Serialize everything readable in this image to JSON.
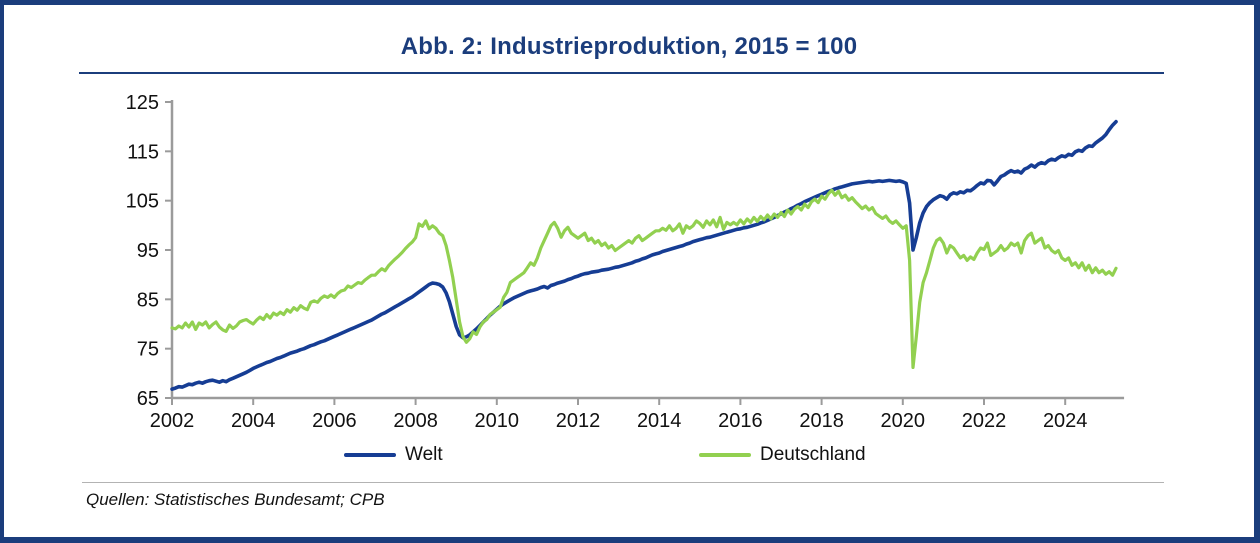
{
  "title": "Abb. 2: Industrieproduktion, 2015 = 100",
  "source": "Quellen: Statistisches Bundesamt; CPB",
  "colors": {
    "frame_navy": "#1b3d7c",
    "axis_gray": "#9b9b9b",
    "label_black": "#111111",
    "welt_blue": "#163d94",
    "deutschland_green": "#92d050"
  },
  "chart_data": {
    "type": "line",
    "title": "Abb. 2: Industrieproduktion, 2015 = 100",
    "xlabel": "",
    "ylabel": "",
    "xlim": [
      2002,
      2025.45
    ],
    "ylim": [
      65,
      125
    ],
    "x_ticks": [
      2002,
      2004,
      2006,
      2008,
      2010,
      2012,
      2014,
      2016,
      2018,
      2020,
      2022,
      2024
    ],
    "y_ticks": [
      65,
      75,
      85,
      95,
      105,
      115,
      125
    ],
    "grid": false,
    "legend_position": "bottom",
    "x_start_year": 2002,
    "x_step_months": 1,
    "series": [
      {
        "name": "Welt",
        "color": "#163d94",
        "values": [
          66.8,
          67.0,
          67.3,
          67.2,
          67.5,
          67.8,
          67.7,
          68.0,
          68.2,
          68.0,
          68.3,
          68.5,
          68.6,
          68.4,
          68.2,
          68.5,
          68.3,
          68.7,
          69.0,
          69.3,
          69.6,
          69.9,
          70.2,
          70.6,
          71.0,
          71.3,
          71.6,
          71.9,
          72.2,
          72.4,
          72.7,
          73.0,
          73.2,
          73.5,
          73.8,
          74.1,
          74.3,
          74.5,
          74.8,
          75.0,
          75.3,
          75.6,
          75.8,
          76.1,
          76.4,
          76.6,
          76.9,
          77.2,
          77.5,
          77.8,
          78.1,
          78.4,
          78.7,
          79.0,
          79.3,
          79.6,
          79.9,
          80.2,
          80.5,
          80.8,
          81.2,
          81.6,
          82.0,
          82.3,
          82.7,
          83.1,
          83.5,
          83.9,
          84.3,
          84.7,
          85.1,
          85.5,
          86.0,
          86.5,
          87.0,
          87.5,
          88.0,
          88.3,
          88.2,
          88.0,
          87.5,
          86.3,
          84.5,
          82.0,
          79.5,
          77.8,
          77.2,
          77.4,
          77.8,
          78.4,
          79.0,
          79.7,
          80.4,
          81.1,
          81.8,
          82.4,
          83.0,
          83.6,
          84.1,
          84.5,
          84.9,
          85.3,
          85.6,
          85.9,
          86.2,
          86.5,
          86.7,
          86.9,
          87.1,
          87.4,
          87.6,
          87.3,
          87.8,
          88.0,
          88.3,
          88.5,
          88.7,
          89.0,
          89.2,
          89.5,
          89.7,
          90.0,
          90.2,
          90.3,
          90.5,
          90.6,
          90.7,
          90.9,
          91.0,
          91.1,
          91.3,
          91.5,
          91.6,
          91.8,
          92.0,
          92.2,
          92.4,
          92.7,
          92.9,
          93.2,
          93.4,
          93.7,
          94.0,
          94.2,
          94.4,
          94.7,
          94.9,
          95.1,
          95.3,
          95.5,
          95.7,
          95.9,
          96.2,
          96.4,
          96.7,
          96.9,
          97.1,
          97.3,
          97.5,
          97.6,
          97.8,
          98.0,
          98.2,
          98.4,
          98.6,
          98.8,
          99.0,
          99.2,
          99.3,
          99.5,
          99.6,
          99.8,
          100.0,
          100.2,
          100.5,
          100.7,
          101.0,
          101.3,
          101.6,
          102.0,
          102.3,
          102.7,
          103.0,
          103.4,
          103.7,
          104.1,
          104.4,
          104.8,
          105.1,
          105.4,
          105.7,
          106.0,
          106.3,
          106.6,
          106.9,
          107.1,
          107.4,
          107.6,
          107.8,
          108.0,
          108.2,
          108.4,
          108.5,
          108.6,
          108.7,
          108.8,
          108.9,
          108.8,
          108.9,
          109.0,
          108.9,
          109.0,
          109.1,
          109.0,
          108.9,
          109.0,
          108.8,
          108.5,
          104.5,
          95.0,
          97.5,
          100.5,
          102.5,
          103.8,
          104.6,
          105.2,
          105.6,
          106.0,
          105.8,
          105.3,
          106.2,
          106.6,
          106.4,
          106.8,
          106.6,
          107.1,
          107.0,
          107.5,
          108.1,
          108.6,
          108.4,
          109.1,
          109.0,
          108.2,
          109.0,
          109.9,
          110.2,
          110.7,
          111.1,
          110.8,
          111.0,
          110.6,
          111.4,
          111.7,
          112.2,
          111.8,
          112.4,
          112.7,
          112.5,
          113.1,
          113.4,
          113.2,
          113.7,
          114.1,
          113.9,
          114.4,
          114.2,
          114.9,
          115.2,
          115.0,
          115.7,
          116.1,
          116.0,
          116.7,
          117.2,
          117.7,
          118.4,
          119.4,
          120.3,
          121.0
        ]
      },
      {
        "name": "Deutschland",
        "color": "#92d050",
        "values": [
          79.2,
          79.0,
          79.6,
          79.2,
          80.2,
          79.4,
          80.4,
          78.9,
          80.2,
          79.8,
          80.4,
          79.2,
          79.9,
          80.4,
          79.4,
          78.8,
          78.5,
          79.8,
          79.1,
          79.6,
          80.4,
          80.7,
          80.9,
          80.4,
          80.0,
          80.8,
          81.4,
          80.9,
          81.9,
          81.2,
          82.2,
          81.8,
          82.4,
          81.9,
          82.9,
          82.4,
          83.3,
          82.8,
          83.7,
          83.2,
          82.9,
          84.4,
          84.7,
          84.4,
          85.2,
          85.7,
          85.4,
          85.9,
          85.4,
          86.2,
          86.7,
          86.9,
          87.7,
          87.4,
          87.9,
          88.4,
          88.2,
          88.9,
          89.4,
          89.9,
          89.9,
          90.6,
          91.2,
          90.8,
          91.8,
          92.5,
          93.2,
          93.8,
          94.5,
          95.3,
          96.0,
          96.6,
          97.5,
          100.3,
          99.8,
          100.9,
          99.3,
          99.9,
          99.4,
          98.4,
          97.9,
          95.9,
          92.9,
          89.4,
          84.9,
          80.4,
          77.4,
          76.3,
          77.0,
          78.4,
          77.9,
          79.4,
          80.4,
          80.9,
          81.9,
          82.4,
          82.9,
          83.4,
          85.4,
          86.4,
          88.4,
          88.9,
          89.4,
          89.9,
          90.4,
          91.4,
          92.4,
          91.9,
          93.4,
          95.4,
          96.9,
          98.4,
          99.9,
          100.6,
          99.4,
          97.6,
          98.9,
          99.6,
          98.4,
          97.9,
          97.4,
          97.9,
          98.4,
          96.9,
          97.4,
          96.4,
          96.9,
          95.9,
          96.4,
          95.4,
          95.9,
          94.9,
          95.4,
          95.9,
          96.4,
          96.9,
          96.4,
          97.4,
          97.9,
          96.9,
          97.4,
          97.9,
          98.4,
          98.9,
          98.9,
          99.4,
          99.0,
          99.9,
          98.9,
          99.4,
          100.3,
          98.4,
          99.9,
          99.4,
          99.9,
          100.9,
          100.4,
          99.6,
          100.9,
          100.1,
          101.1,
          99.7,
          101.6,
          99.2,
          100.6,
          100.1,
          100.6,
          100.1,
          101.1,
          100.3,
          101.3,
          100.6,
          101.6,
          100.8,
          101.8,
          101.1,
          102.1,
          101.3,
          102.3,
          101.6,
          102.6,
          101.8,
          103.1,
          102.3,
          103.3,
          103.8,
          103.1,
          104.3,
          103.6,
          104.8,
          105.3,
          104.6,
          105.9,
          105.3,
          106.4,
          107.1,
          106.1,
          106.9,
          105.6,
          106.1,
          105.1,
          105.6,
          104.8,
          104.1,
          103.4,
          103.9,
          103.1,
          103.6,
          102.4,
          101.9,
          101.4,
          101.9,
          100.9,
          100.4,
          100.9,
          100.1,
          99.4,
          99.9,
          92.9,
          71.2,
          77.4,
          84.4,
          88.4,
          90.4,
          92.9,
          95.4,
          96.9,
          97.4,
          96.4,
          94.4,
          95.9,
          95.4,
          94.4,
          93.4,
          93.9,
          92.9,
          93.6,
          93.1,
          94.4,
          95.4,
          95.1,
          96.4,
          93.9,
          94.4,
          94.9,
          95.9,
          94.9,
          95.4,
          96.4,
          95.9,
          96.4,
          94.4,
          96.9,
          97.9,
          98.4,
          96.4,
          96.9,
          97.4,
          95.4,
          95.9,
          94.9,
          94.4,
          94.9,
          93.4,
          92.9,
          93.4,
          91.9,
          92.4,
          91.4,
          92.4,
          90.9,
          91.9,
          90.4,
          91.4,
          90.4,
          90.9,
          90.1,
          90.6,
          89.9,
          91.3
        ]
      }
    ]
  }
}
